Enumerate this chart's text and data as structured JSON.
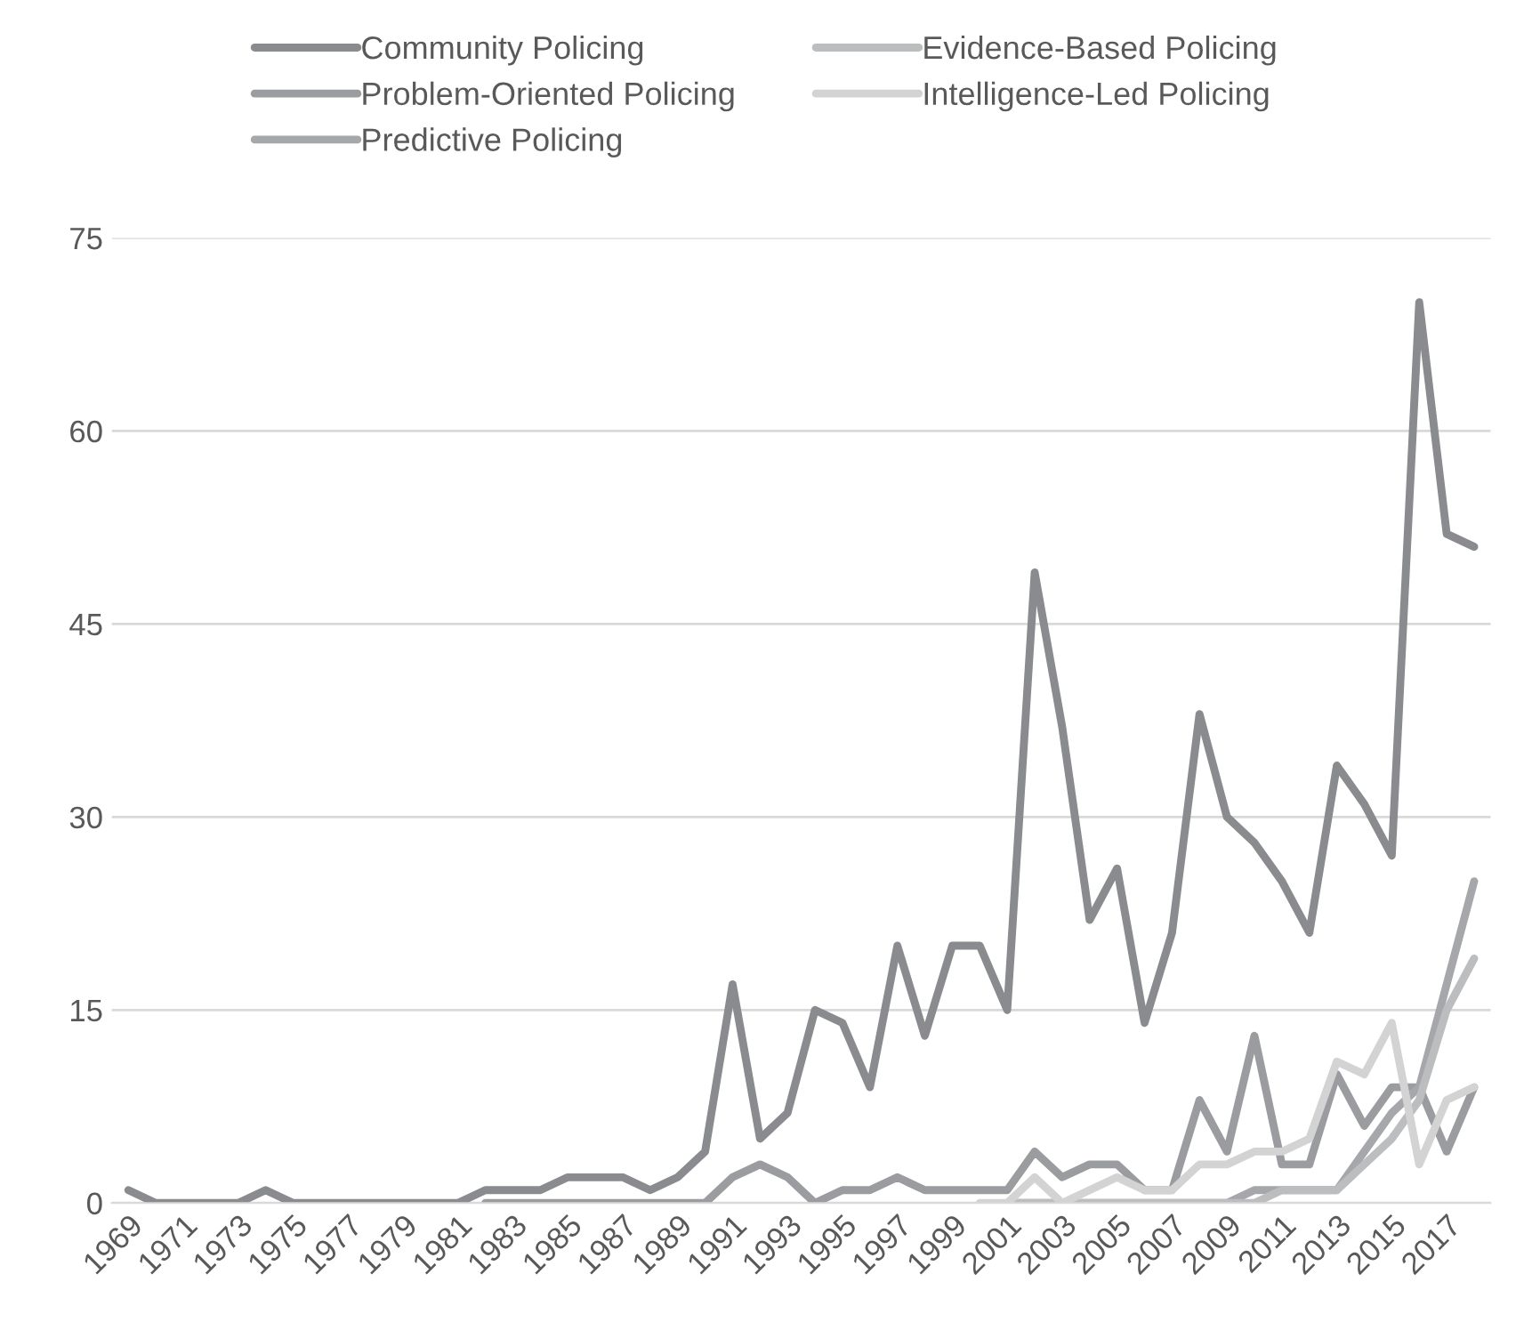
{
  "chart_data": {
    "type": "line",
    "categories": [
      "1969",
      null,
      "1971",
      null,
      "1973",
      null,
      "1975",
      null,
      "1977",
      null,
      "1979",
      null,
      "1981",
      null,
      "1983",
      null,
      "1985",
      null,
      "1987",
      null,
      "1989",
      null,
      "1991",
      null,
      "1993",
      null,
      "1995",
      null,
      "1997",
      null,
      "1999",
      null,
      "2001",
      null,
      "2003",
      null,
      "2005",
      null,
      "2007",
      null,
      "2009",
      null,
      "2011",
      null,
      "2013",
      null,
      "2015",
      null,
      "2017",
      null
    ],
    "series": [
      {
        "name": "Community Policing",
        "color": "#8a8b8f",
        "values": [
          1,
          0,
          0,
          0,
          0,
          1,
          0,
          0,
          0,
          0,
          0,
          0,
          0,
          1,
          1,
          1,
          2,
          2,
          2,
          1,
          2,
          4,
          17,
          5,
          7,
          15,
          14,
          9,
          20,
          13,
          20,
          20,
          15,
          49,
          37,
          22,
          26,
          14,
          21,
          38,
          30,
          28,
          25,
          21,
          34,
          31,
          27,
          70,
          52,
          51
        ]
      },
      {
        "name": "Problem-Oriented Policing",
        "color": "#9b9c9f",
        "values": [
          null,
          null,
          null,
          null,
          null,
          null,
          null,
          null,
          null,
          null,
          null,
          null,
          null,
          0,
          0,
          0,
          0,
          0,
          0,
          0,
          0,
          0,
          2,
          3,
          2,
          0,
          1,
          1,
          2,
          1,
          1,
          1,
          1,
          4,
          2,
          3,
          3,
          1,
          1,
          8,
          4,
          13,
          3,
          3,
          10,
          6,
          9,
          9,
          4,
          9
        ]
      },
      {
        "name": "Predictive Policing",
        "color": "#a6a7aa",
        "values": [
          null,
          null,
          null,
          null,
          null,
          null,
          null,
          null,
          null,
          null,
          null,
          null,
          null,
          null,
          null,
          null,
          null,
          null,
          null,
          null,
          null,
          null,
          null,
          null,
          null,
          null,
          null,
          null,
          null,
          null,
          null,
          null,
          0,
          0,
          0,
          0,
          0,
          0,
          0,
          0,
          0,
          1,
          1,
          1,
          1,
          4,
          7,
          9,
          17,
          25
        ]
      },
      {
        "name": "Evidence-Based Policing",
        "color": "#bcbdbf",
        "values": [
          null,
          null,
          null,
          null,
          null,
          null,
          null,
          null,
          null,
          null,
          null,
          null,
          null,
          null,
          null,
          null,
          null,
          null,
          null,
          null,
          null,
          null,
          null,
          null,
          null,
          null,
          null,
          null,
          null,
          null,
          null,
          null,
          0,
          0,
          0,
          0,
          0,
          0,
          0,
          0,
          0,
          0,
          1,
          1,
          1,
          3,
          5,
          8,
          15,
          19
        ]
      },
      {
        "name": "Intelligence-Led Policing",
        "color": "#d3d3d4",
        "values": [
          null,
          null,
          null,
          null,
          null,
          null,
          null,
          null,
          null,
          null,
          null,
          null,
          null,
          null,
          null,
          null,
          null,
          null,
          null,
          null,
          null,
          null,
          null,
          null,
          null,
          null,
          null,
          null,
          null,
          null,
          null,
          0,
          0,
          2,
          0,
          1,
          2,
          1,
          1,
          3,
          3,
          4,
          4,
          5,
          11,
          10,
          14,
          3,
          8,
          9
        ]
      }
    ],
    "ylim": [
      0,
      75
    ],
    "yticks": [
      0,
      15,
      30,
      45,
      60,
      75
    ],
    "grid": "y",
    "legend": "top",
    "marker": "none",
    "line_style": "solid"
  }
}
